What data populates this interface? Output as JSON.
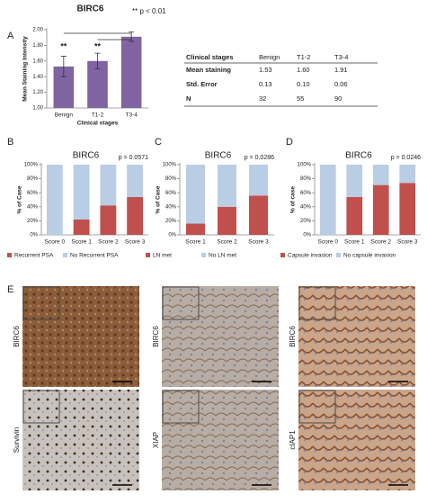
{
  "chart_data": [
    {
      "type": "bar",
      "panel": "A",
      "title": "BIRC6",
      "annotations": [
        "** p < 0.01",
        "**",
        "**"
      ],
      "ylabel": "Mean Staining Intensity",
      "xlabel": "Clinical stages",
      "categories": [
        "Benign",
        "T1-2",
        "T3-4"
      ],
      "values": [
        1.53,
        1.6,
        1.91
      ],
      "errors": [
        0.13,
        0.1,
        0.06
      ],
      "color": "#8064a2",
      "ylim": [
        1.0,
        2.0
      ],
      "yticks": [
        {
          "value": 1.0,
          "label": "1.00"
        },
        {
          "value": 1.2,
          "label": "1.20"
        },
        {
          "value": 1.4,
          "label": "1.40"
        },
        {
          "value": 1.6,
          "label": "1.60"
        },
        {
          "value": 1.8,
          "label": "1.80"
        },
        {
          "value": 2.0,
          "label": "2.00"
        }
      ]
    },
    {
      "type": "stacked_bar",
      "panel": "B",
      "title": "BIRC6",
      "annotations": [
        "p = 0.0571"
      ],
      "ylabel": "% of Case",
      "categories": [
        "Score 0",
        "Score 1",
        "Score 2",
        "Score 3"
      ],
      "series": [
        {
          "name": "Recurrent PSA",
          "color": "#c0504d",
          "values": [
            0,
            22,
            42,
            54
          ]
        },
        {
          "name": "No Recurrent PSA",
          "color": "#b9cde5",
          "values": [
            100,
            78,
            58,
            46
          ]
        }
      ],
      "ylim": [
        0,
        100
      ],
      "legend": "bottom",
      "yticks": [
        {
          "value": 0,
          "label": "0%"
        },
        {
          "value": 20,
          "label": "20%"
        },
        {
          "value": 40,
          "label": "40%"
        },
        {
          "value": 60,
          "label": "60%"
        },
        {
          "value": 80,
          "label": "80%"
        },
        {
          "value": 100,
          "label": "100%"
        }
      ]
    },
    {
      "type": "stacked_bar",
      "panel": "C",
      "title": "BIRC6",
      "annotations": [
        "p = 0.0286"
      ],
      "ylabel": "% of Case",
      "categories": [
        "Score 1",
        "Score 2",
        "Score 3"
      ],
      "series": [
        {
          "name": "LN met",
          "color": "#c0504d",
          "values": [
            16,
            40,
            56
          ]
        },
        {
          "name": "No LN met",
          "color": "#b9cde5",
          "values": [
            84,
            60,
            44
          ]
        }
      ],
      "ylim": [
        0,
        100
      ],
      "legend": "bottom",
      "yticks": [
        {
          "value": 0,
          "label": "0%"
        },
        {
          "value": 20,
          "label": "20%"
        },
        {
          "value": 40,
          "label": "40%"
        },
        {
          "value": 60,
          "label": "60%"
        },
        {
          "value": 80,
          "label": "80%"
        },
        {
          "value": 100,
          "label": "100%"
        }
      ]
    },
    {
      "type": "stacked_bar",
      "panel": "D",
      "title": "BIRC6",
      "annotations": [
        "p = 0.0246"
      ],
      "ylabel": "% of case",
      "categories": [
        "Score 0",
        "Score 1",
        "Score 2",
        "Score 3"
      ],
      "series": [
        {
          "name": "Capsule invasion",
          "color": "#c0504d",
          "values": [
            0,
            54,
            71,
            74
          ]
        },
        {
          "name": "No capsule invasion",
          "color": "#b9cde5",
          "values": [
            100,
            46,
            29,
            26
          ]
        }
      ],
      "ylim": [
        0,
        100
      ],
      "legend": "bottom",
      "yticks": [
        {
          "value": 0,
          "label": "0%"
        },
        {
          "value": 20,
          "label": "20%"
        },
        {
          "value": 40,
          "label": "40%"
        },
        {
          "value": 60,
          "label": "60%"
        },
        {
          "value": 80,
          "label": "80%"
        },
        {
          "value": 100,
          "label": "100%"
        }
      ]
    }
  ],
  "table": {
    "header": [
      "Clinical stages",
      "Benign",
      "T1-2",
      "T3-4"
    ],
    "rows": [
      [
        "Mean staining",
        "1.53",
        "1.60",
        "1.91"
      ],
      [
        "Std. Error",
        "0.13",
        "0.10",
        "0.06"
      ],
      [
        "N",
        "32",
        "55",
        "90"
      ]
    ]
  },
  "panel_e": {
    "panel": "E",
    "images": [
      {
        "label": "BIRC6"
      },
      {
        "label": "Survivin"
      },
      {
        "label": "BIRC6"
      },
      {
        "label": "XIAP"
      },
      {
        "label": "BIRC6"
      },
      {
        "label": "cIAP1"
      }
    ]
  }
}
